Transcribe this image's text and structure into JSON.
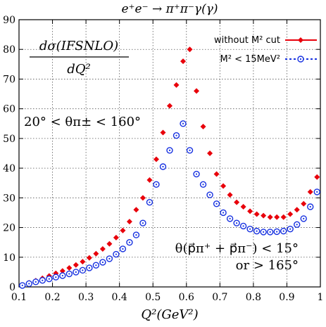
{
  "chart_data": {
    "type": "scatter",
    "title": "e⁺e⁻ → π⁺π⁻γ(γ)",
    "xlabel": "Q²(GeV²)",
    "ylabel": "dσ(IFSNLO) / dQ²",
    "ylabel_numerator": "dσ(IFSNLO)",
    "ylabel_denominator": "dQ²",
    "xlim": [
      0.1,
      1.0
    ],
    "ylim": [
      0,
      90
    ],
    "xticks": [
      "0.1",
      "0.2",
      "0.3",
      "0.4",
      "0.5",
      "0.6",
      "0.7",
      "0.8",
      "0.9",
      "1"
    ],
    "yticks": [
      "0",
      "10",
      "20",
      "30",
      "40",
      "50",
      "60",
      "70",
      "80",
      "90"
    ],
    "grid": true,
    "legend_position": "top-right",
    "annotations": {
      "theta_cut": "20° < θπ± < 160°",
      "angle_cut_line1": "θ(p⃗π⁺ + p⃗π⁻) < 15°",
      "angle_cut_line2": "or > 165°"
    },
    "series": [
      {
        "name": "without M² cut",
        "color": "#e8000b",
        "marker": "diamond",
        "line_style": "solid",
        "x": [
          0.11,
          0.13,
          0.15,
          0.17,
          0.19,
          0.21,
          0.23,
          0.25,
          0.27,
          0.29,
          0.31,
          0.33,
          0.35,
          0.37,
          0.39,
          0.41,
          0.43,
          0.45,
          0.47,
          0.49,
          0.51,
          0.53,
          0.55,
          0.57,
          0.59,
          0.61,
          0.63,
          0.65,
          0.67,
          0.69,
          0.71,
          0.73,
          0.75,
          0.77,
          0.79,
          0.81,
          0.83,
          0.85,
          0.87,
          0.89,
          0.91,
          0.93,
          0.95,
          0.97,
          0.99
        ],
        "y": [
          0.6,
          1.4,
          2.1,
          2.9,
          3.7,
          4.6,
          5.4,
          6.4,
          7.4,
          8.5,
          9.8,
          11.2,
          12.8,
          14.5,
          16.6,
          19,
          22,
          26,
          30,
          36,
          43,
          52,
          61,
          68,
          76,
          80,
          66,
          54,
          45,
          38,
          34,
          31,
          28.5,
          27,
          25.5,
          24.5,
          24,
          23.5,
          23.5,
          23.5,
          24.5,
          26,
          28,
          32,
          37
        ]
      },
      {
        "name": "M² < 15MeV²",
        "color": "#1530e0",
        "marker": "open-circle",
        "line_style": "dashed",
        "x": [
          0.11,
          0.13,
          0.15,
          0.17,
          0.19,
          0.21,
          0.23,
          0.25,
          0.27,
          0.29,
          0.31,
          0.33,
          0.35,
          0.37,
          0.39,
          0.41,
          0.43,
          0.45,
          0.47,
          0.49,
          0.51,
          0.53,
          0.55,
          0.57,
          0.59,
          0.61,
          0.63,
          0.65,
          0.67,
          0.69,
          0.71,
          0.73,
          0.75,
          0.77,
          0.79,
          0.81,
          0.83,
          0.85,
          0.87,
          0.89,
          0.91,
          0.93,
          0.95,
          0.97,
          0.99
        ],
        "y": [
          0.5,
          1.1,
          1.7,
          2.2,
          2.7,
          3.3,
          3.8,
          4.4,
          5.0,
          5.6,
          6.4,
          7.3,
          8.3,
          9.5,
          11.0,
          12.8,
          15.0,
          17.5,
          21.5,
          28.5,
          34.5,
          40.5,
          46,
          51,
          55,
          46,
          38,
          34.5,
          31,
          28,
          25,
          23,
          21.5,
          20.5,
          19.5,
          18.8,
          18.5,
          18.5,
          18.6,
          18.8,
          19.5,
          21,
          23,
          27,
          32
        ]
      }
    ]
  }
}
